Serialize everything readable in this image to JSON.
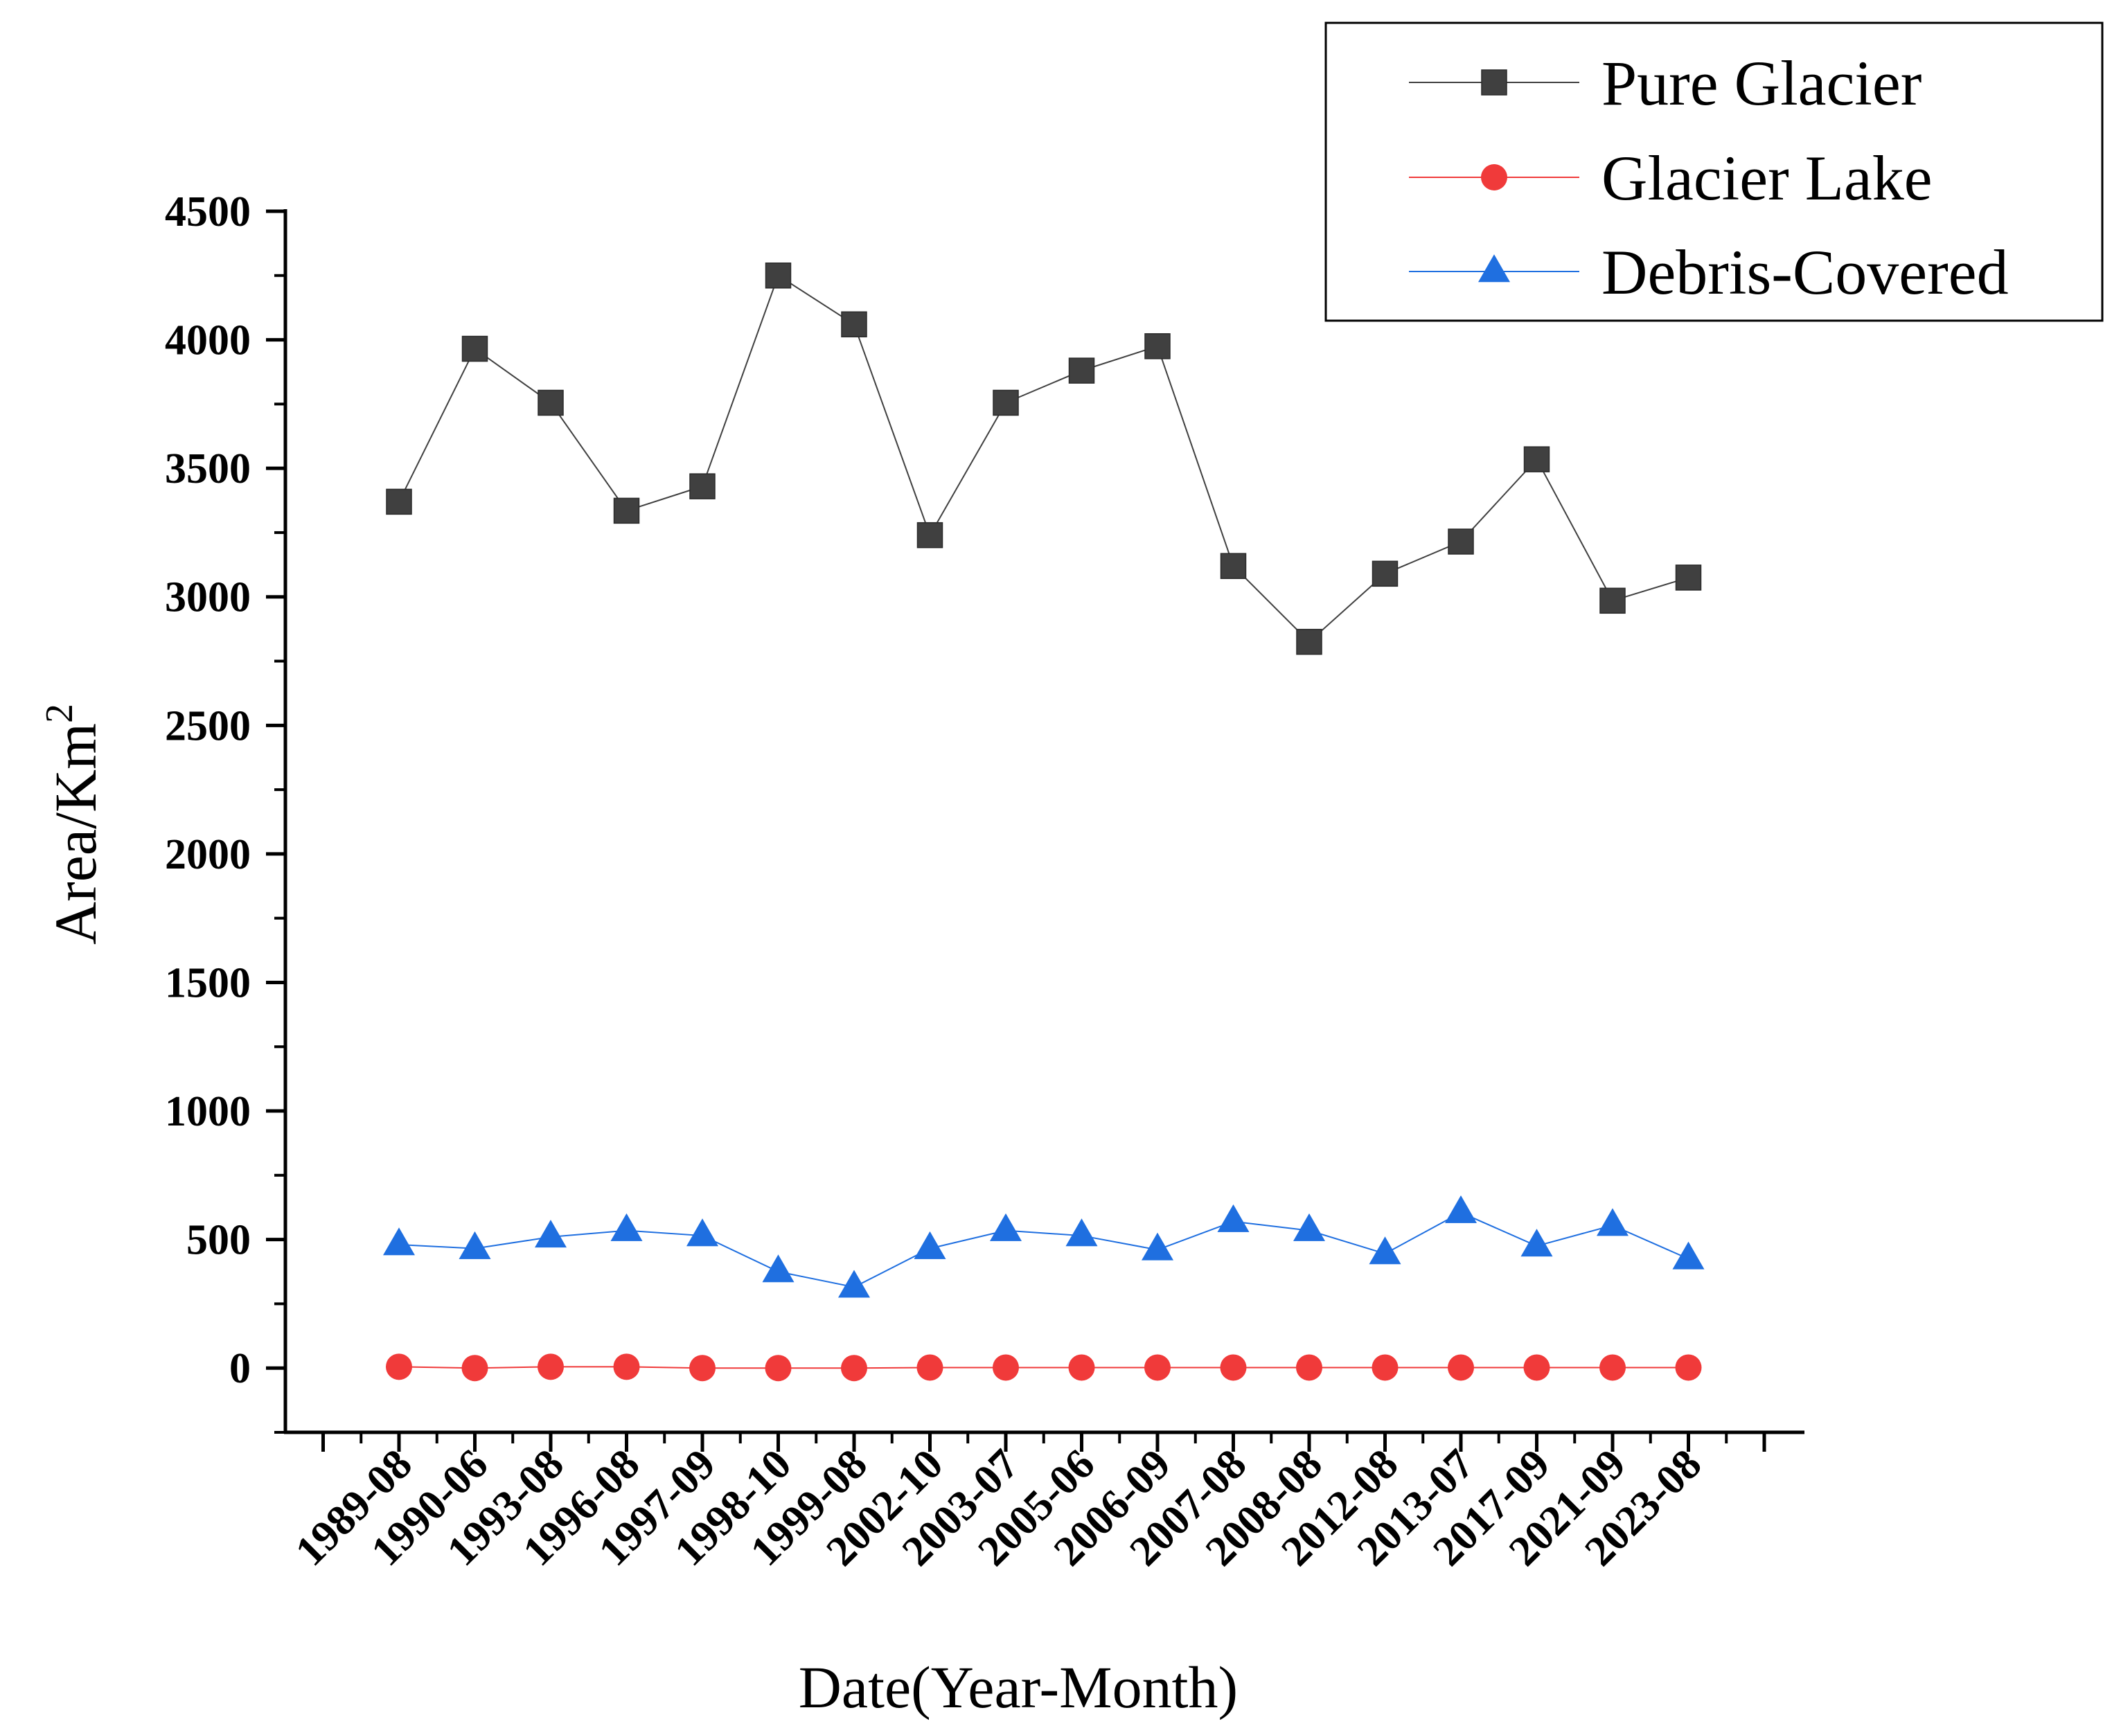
{
  "chart_data": {
    "type": "line",
    "title": "",
    "xlabel": "Date(Year-Month)",
    "ylabel": "Area/Km",
    "ylabel_superscript": "2",
    "ylim": [
      -250,
      4500
    ],
    "yticks": [
      0,
      500,
      1000,
      1500,
      2000,
      2500,
      3000,
      3500,
      4000,
      4500
    ],
    "ytick_labels": [
      "0",
      "500",
      "1000",
      "1500",
      "2000",
      "2500",
      "3000",
      "3500",
      "4000",
      "4500"
    ],
    "categories": [
      "1989-08",
      "1990-06",
      "1993-08",
      "1996-08",
      "1997-09",
      "1998-10",
      "1999-08",
      "2002-10",
      "2003-07",
      "2005-06",
      "2006-09",
      "2007-08",
      "2008-08",
      "2012-08",
      "2013-07",
      "2017-09",
      "2021-09",
      "2023-08"
    ],
    "legend_position": "top-right",
    "series": [
      {
        "name": "Pure Glacier",
        "color": "#404040",
        "line_color": "#404040",
        "marker": "square",
        "values": [
          3370,
          3965,
          3755,
          3335,
          3430,
          4250,
          4060,
          3240,
          3755,
          3880,
          3975,
          3120,
          2825,
          3090,
          3215,
          3535,
          2985,
          3075
        ]
      },
      {
        "name": "Glacier Lake",
        "color": "#f03a3a",
        "line_color": "#f03a3a",
        "marker": "circle",
        "values": [
          5,
          0,
          5,
          5,
          0,
          0,
          0,
          2,
          2,
          2,
          2,
          2,
          2,
          2,
          2,
          2,
          2,
          2
        ]
      },
      {
        "name": "Debris-Covered",
        "color": "#1f6fe0",
        "line_color": "#1f6fe0",
        "marker": "triangle",
        "values": [
          480,
          465,
          510,
          535,
          515,
          375,
          315,
          465,
          535,
          515,
          460,
          570,
          535,
          445,
          605,
          475,
          555,
          425
        ]
      }
    ]
  }
}
